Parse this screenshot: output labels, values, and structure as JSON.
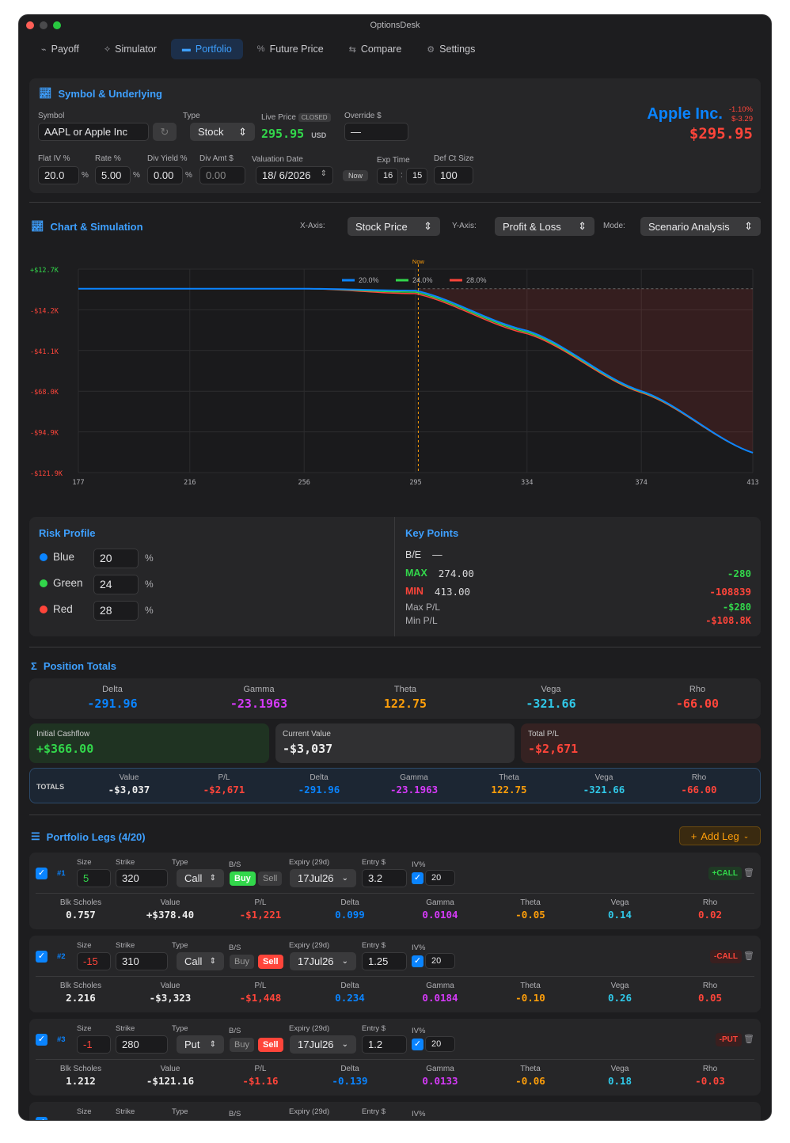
{
  "app": {
    "title": "OptionsDesk"
  },
  "tabs": [
    {
      "label": "Payoff",
      "icon": "chart-line-icon"
    },
    {
      "label": "Simulator",
      "icon": "pulse-icon"
    },
    {
      "label": "Portfolio",
      "icon": "briefcase-icon"
    },
    {
      "label": "Future Price",
      "icon": "percent-icon"
    },
    {
      "label": "Compare",
      "icon": "arrows-icon"
    },
    {
      "label": "Settings",
      "icon": "gear-icon"
    }
  ],
  "symbol": {
    "header": "Symbol & Underlying",
    "symbol_label": "Symbol",
    "symbol_value": "AAPL or Apple Inc",
    "type_label": "Type",
    "type_value": "Stock",
    "live_label": "Live Price",
    "closed": "CLOSED",
    "live_price": "295.95",
    "currency": "USD",
    "override_label": "Override $",
    "override_value": "—",
    "flat_iv_label": "Flat IV %",
    "flat_iv": "20.0",
    "rate_label": "Rate %",
    "rate": "5.00",
    "divy_label": "Div Yield %",
    "divy": "0.00",
    "diva_label": "Div Amt $",
    "diva": "0.00",
    "valdate_label": "Valuation Date",
    "valdate": "18/ 6/2026",
    "now_btn": "Now",
    "exptime_label": "Exp Time",
    "exp_h": "16",
    "exp_m": "15",
    "defct_label": "Def Ct Size",
    "defct": "100",
    "pct": "%",
    "company": "Apple Inc.",
    "chg_pct": "-1.10%",
    "chg_abs": "$-3.29",
    "big_price": "$295.95"
  },
  "chart_panel": {
    "header": "Chart & Simulation",
    "xaxis_label": "X-Axis:",
    "xaxis": "Stock Price",
    "yaxis_label": "Y-Axis:",
    "yaxis": "Profit & Loss",
    "mode_label": "Mode:",
    "mode": "Scenario Analysis",
    "now_label": "Now"
  },
  "chart_data": {
    "type": "line",
    "x": [
      177,
      216,
      256,
      295,
      334,
      374,
      413
    ],
    "yticks": [
      "+$12.7K",
      "-$14.2K",
      "-$41.1K",
      "-$68.0K",
      "-$94.9K",
      "-$121.9K"
    ],
    "ylim": [
      -121.9,
      12.7
    ],
    "current_price": 295.95,
    "legend_position": "top",
    "series": [
      {
        "name": "20.0%",
        "color": "#0a84ff",
        "values": [
          -0.28,
          -0.28,
          -0.28,
          -1.5,
          -28,
          -68,
          -108.8
        ]
      },
      {
        "name": "24.0%",
        "color": "#32d74b",
        "values": [
          -0.28,
          -0.28,
          -0.28,
          -2.5,
          -29,
          -68.5,
          -108.8
        ]
      },
      {
        "name": "28.0%",
        "color": "#ff453a",
        "values": [
          -0.28,
          -0.28,
          -0.28,
          -3.5,
          -30,
          -69,
          -108.8
        ]
      }
    ]
  },
  "risk": {
    "header": "Risk Profile",
    "rows": [
      {
        "name": "Blue",
        "value": "20",
        "color": "#0a84ff"
      },
      {
        "name": "Green",
        "value": "24",
        "color": "#32d74b"
      },
      {
        "name": "Red",
        "value": "28",
        "color": "#ff453a"
      }
    ],
    "pct": "%"
  },
  "key": {
    "header": "Key Points",
    "be_label": "B/E",
    "be_value": "—",
    "max_label": "MAX",
    "max_x": "274.00",
    "max_v": "-280",
    "min_label": "MIN",
    "min_x": "413.00",
    "min_v": "-108839",
    "maxpl_label": "Max P/L",
    "maxpl": "-$280",
    "minpl_label": "Min P/L",
    "minpl": "-$108.8K"
  },
  "totals": {
    "header": "Position Totals",
    "greeks": [
      {
        "k": "Delta",
        "v": "-291.96"
      },
      {
        "k": "Gamma",
        "v": "-23.1963"
      },
      {
        "k": "Theta",
        "v": "122.75"
      },
      {
        "k": "Vega",
        "v": "-321.66"
      },
      {
        "k": "Rho",
        "v": "-66.00"
      }
    ],
    "cash_label": "Initial Cashflow",
    "cash": "+$366.00",
    "cur_label": "Current Value",
    "cur": "-$3,037",
    "tpl_label": "Total P/L",
    "tpl": "-$2,671",
    "row_label": "TOTALS",
    "row": [
      {
        "k": "Value",
        "v": "-$3,037"
      },
      {
        "k": "P/L",
        "v": "-$2,671"
      },
      {
        "k": "Delta",
        "v": "-291.96"
      },
      {
        "k": "Gamma",
        "v": "-23.1963"
      },
      {
        "k": "Theta",
        "v": "122.75"
      },
      {
        "k": "Vega",
        "v": "-321.66"
      },
      {
        "k": "Rho",
        "v": "-66.00"
      }
    ]
  },
  "legs": {
    "header": "Portfolio Legs (4/20)",
    "add": "Add Leg",
    "labels": {
      "size": "Size",
      "strike": "Strike",
      "type": "Type",
      "bs": "B/S",
      "expiry": "Expiry (29d)",
      "entry": "Entry $",
      "iv": "IV%",
      "buy": "Buy",
      "sell": "Sell",
      "bs_name": "Blk Scholes",
      "value": "Value",
      "pl": "P/L",
      "delta": "Delta",
      "gamma": "Gamma",
      "theta": "Theta",
      "vega": "Vega",
      "rho": "Rho"
    },
    "items": [
      {
        "num": "#1",
        "size": "5",
        "strike": "320",
        "type": "Call",
        "side": "Buy",
        "expiry": "17Jul26",
        "entry": "3.2",
        "iv": "20",
        "badge": "+CALL",
        "bsv": "0.757",
        "value": "+$378.40",
        "pl": "-$1,221",
        "delta": "0.099",
        "gamma": "0.0104",
        "theta": "-0.05",
        "vega": "0.14",
        "rho": "0.02"
      },
      {
        "num": "#2",
        "size": "-15",
        "strike": "310",
        "type": "Call",
        "side": "Sell",
        "expiry": "17Jul26",
        "entry": "1.25",
        "iv": "20",
        "badge": "-CALL",
        "bsv": "2.216",
        "value": "-$3,323",
        "pl": "-$1,448",
        "delta": "0.234",
        "gamma": "0.0184",
        "theta": "-0.10",
        "vega": "0.26",
        "rho": "0.05"
      },
      {
        "num": "#3",
        "size": "-1",
        "strike": "280",
        "type": "Put",
        "side": "Sell",
        "expiry": "17Jul26",
        "entry": "1.2",
        "iv": "20",
        "badge": "-PUT",
        "bsv": "1.212",
        "value": "-$121.16",
        "pl": "-$1.16",
        "delta": "-0.139",
        "gamma": "0.0133",
        "theta": "-0.06",
        "vega": "0.18",
        "rho": "-0.03"
      }
    ]
  }
}
